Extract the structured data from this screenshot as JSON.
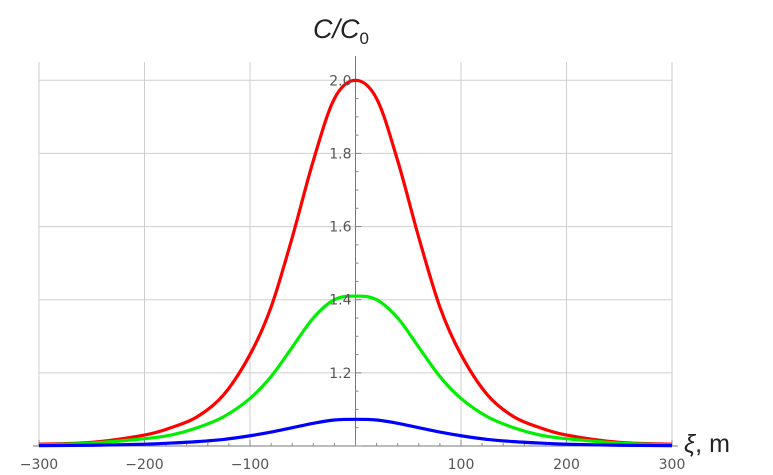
{
  "chart_data": {
    "type": "line",
    "title": "",
    "ylabel_main": "C/C",
    "ylabel_sub": "0",
    "xlabel_symbol": "ξ",
    "xlabel_unit": ", m",
    "xlim": [
      -300,
      300
    ],
    "ylim": [
      1.0,
      2.05
    ],
    "grid": true,
    "x_ticks": [
      -300,
      -200,
      -100,
      100,
      200,
      300
    ],
    "x_tick_labels": [
      "−300",
      "−200",
      "−100",
      "100",
      "200",
      "300"
    ],
    "y_ticks": [
      1.2,
      1.4,
      1.6,
      1.8,
      2.0
    ],
    "y_tick_labels": [
      "1.2",
      "1.4",
      "1.6",
      "1.8",
      "2.0"
    ],
    "x": [
      -300,
      -250,
      -200,
      -175,
      -150,
      -125,
      -100,
      -80,
      -60,
      -40,
      -20,
      0,
      20,
      40,
      60,
      80,
      100,
      125,
      150,
      175,
      200,
      250,
      300
    ],
    "series": [
      {
        "color": "#ff0000",
        "values": [
          1.005,
          1.01,
          1.03,
          1.05,
          1.08,
          1.14,
          1.25,
          1.38,
          1.57,
          1.78,
          1.95,
          2.0,
          1.95,
          1.78,
          1.57,
          1.38,
          1.25,
          1.14,
          1.08,
          1.05,
          1.03,
          1.01,
          1.005
        ]
      },
      {
        "color": "#00ee00",
        "values": [
          1.003,
          1.008,
          1.02,
          1.03,
          1.05,
          1.08,
          1.13,
          1.19,
          1.27,
          1.35,
          1.4,
          1.41,
          1.4,
          1.35,
          1.27,
          1.19,
          1.13,
          1.08,
          1.05,
          1.03,
          1.02,
          1.008,
          1.003
        ]
      },
      {
        "color": "#0000ff",
        "values": [
          1.001,
          1.002,
          1.005,
          1.008,
          1.012,
          1.018,
          1.028,
          1.038,
          1.05,
          1.062,
          1.071,
          1.073,
          1.071,
          1.062,
          1.05,
          1.038,
          1.028,
          1.018,
          1.012,
          1.008,
          1.005,
          1.002,
          1.001
        ]
      }
    ]
  }
}
